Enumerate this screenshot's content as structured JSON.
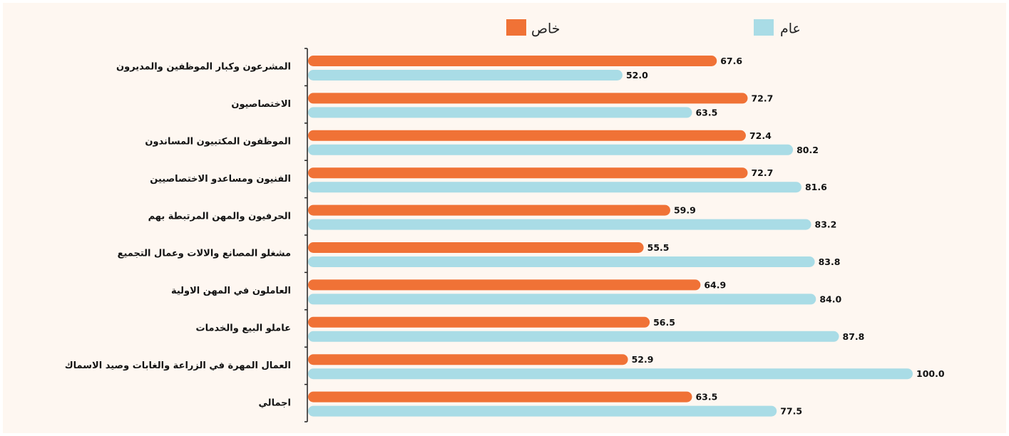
{
  "chart_data": {
    "type": "barh",
    "categories": [
      "المشرعون وكبار الموظفين والمديرون",
      "الاختصاصيون",
      "الموظفون المكتبيون المساندون",
      "الفنيون ومساعدو الاختصاصيين",
      "الحرفيون والمهن المرتبطة بهم",
      "مشغلو المصانع والالات وعمال التجميع",
      "العاملون في المهن الاولية",
      "عاملو البيع والخدمات",
      "العمال المهرة في الزراعة والغابات وصيد الاسماك",
      "اجمالي"
    ],
    "series": [
      {
        "name": "خاص",
        "color": "#f07236",
        "values": [
          67.6,
          72.7,
          72.4,
          72.7,
          59.9,
          55.5,
          64.9,
          56.5,
          52.9,
          63.5
        ],
        "value_labels": [
          "67.6",
          "72.7",
          "72.4",
          "72.7",
          "59.9",
          "55.5",
          "64.9",
          "56.5",
          "52.9",
          "63.5"
        ]
      },
      {
        "name": "عام",
        "color": "#a9dce6",
        "values": [
          52.0,
          63.5,
          80.2,
          81.6,
          83.2,
          83.8,
          84.0,
          87.8,
          100.0,
          77.5
        ],
        "value_labels": [
          "52.0",
          "63.5",
          "80.2",
          "81.6",
          "83.2",
          "83.8",
          "84.0",
          "87.8",
          "100.0",
          "77.5"
        ]
      }
    ],
    "xlim": [
      0,
      100
    ]
  }
}
